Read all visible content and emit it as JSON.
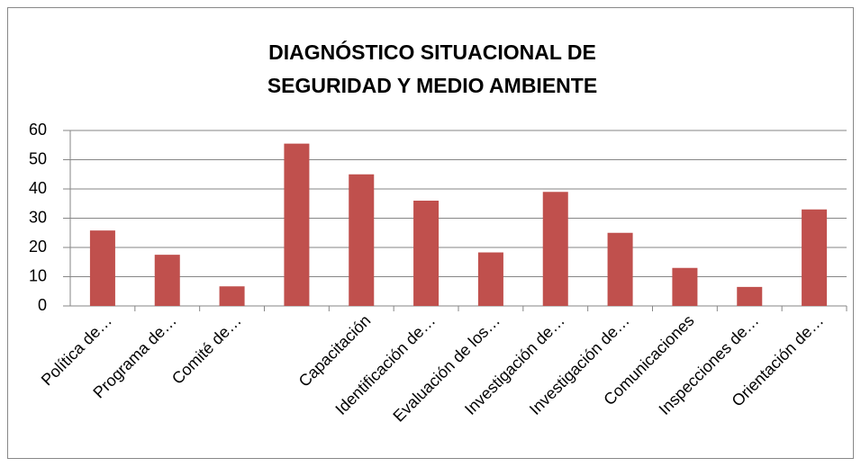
{
  "chart_data": {
    "type": "bar",
    "title": "DIAGNÓSTICO SITUACIONAL DE SEGURIDAD Y MEDIO AMBIENTE",
    "categories": [
      "Política de…",
      "Programa de…",
      "Comité de…",
      null,
      "Capacitación",
      "Identificación de…",
      "Evaluación de los…",
      "Investigación de…",
      "Investigación de…",
      "Comunicaciones",
      "Inspecciones de…",
      "Orientación de…"
    ],
    "values": [
      25.8,
      17.5,
      6.7,
      55.5,
      45,
      36,
      18.3,
      39,
      25,
      13,
      6.5,
      33
    ],
    "color": "#c0504d",
    "ylim": [
      0,
      60
    ],
    "yticks": [
      0,
      10,
      20,
      30,
      40,
      50,
      60
    ],
    "grid": true
  }
}
